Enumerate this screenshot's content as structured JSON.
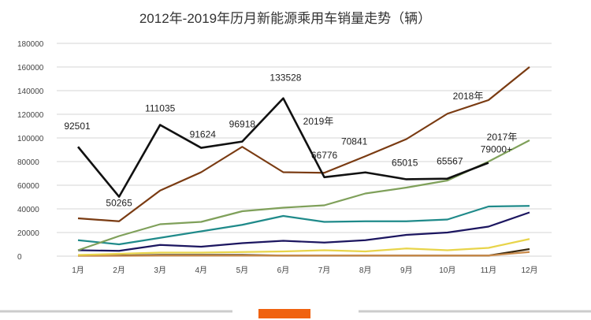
{
  "chart_data": {
    "type": "line",
    "title": "2012年-2019年历月新能源乘用车销量走势（辆）",
    "xlabel": "",
    "ylabel": "",
    "categories": [
      "1月",
      "2月",
      "3月",
      "4月",
      "5月",
      "6月",
      "7月",
      "8月",
      "9月",
      "10月",
      "11月",
      "12月"
    ],
    "yticks": [
      "0",
      "20000",
      "40000",
      "60000",
      "80000",
      "100000",
      "120000",
      "140000",
      "160000",
      "180000"
    ],
    "ylim": [
      0,
      180000
    ],
    "grid": true,
    "legend": "none",
    "series": [
      {
        "name": "2019年",
        "color": "#111111",
        "values": [
          92501,
          50265,
          111035,
          91624,
          96918,
          133528,
          66776,
          70841,
          65015,
          65567,
          79000,
          null
        ],
        "data_labels": [
          "92501",
          "50265",
          "111035",
          "91624",
          "96918",
          "133528",
          "66776",
          "70841",
          "65015",
          "65567",
          "79000+",
          ""
        ]
      },
      {
        "name": "2018年",
        "color": "#7a3b12",
        "values": [
          32000,
          29500,
          55500,
          71000,
          92500,
          71000,
          70500,
          84500,
          99000,
          120500,
          132000,
          160000
        ]
      },
      {
        "name": "2017年",
        "color": "#7fa05a",
        "values": [
          5000,
          17000,
          27000,
          29000,
          38000,
          41000,
          43000,
          53000,
          58000,
          64000,
          80000,
          98000
        ]
      },
      {
        "color": "#1f8a8a",
        "values": [
          13500,
          10000,
          15500,
          21000,
          26500,
          34000,
          29000,
          29500,
          29500,
          31000,
          42000,
          42500
        ]
      },
      {
        "color": "#1c1660",
        "values": [
          5000,
          4500,
          9500,
          8000,
          11000,
          13000,
          11500,
          13500,
          18000,
          20000,
          25000,
          37000
        ]
      },
      {
        "color": "#e8d44a",
        "values": [
          1000,
          2000,
          3000,
          3000,
          3500,
          4000,
          5000,
          4000,
          6500,
          5000,
          7000,
          14500
        ]
      },
      {
        "color": "#c98a4a",
        "values": [
          300,
          300,
          500,
          500,
          500,
          500,
          500,
          500,
          500,
          500,
          500,
          3500
        ]
      },
      {
        "color": "#3a2a10",
        "values": [
          500,
          500,
          1000,
          1000,
          1000,
          500,
          500,
          500,
          500,
          500,
          500,
          6000
        ]
      }
    ]
  }
}
